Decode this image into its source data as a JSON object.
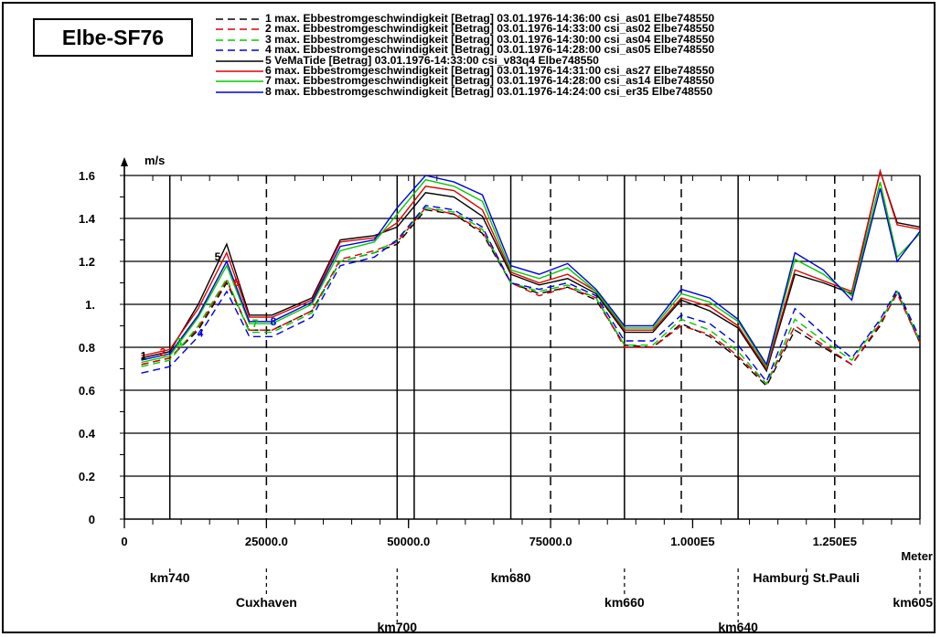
{
  "title": "Elbe-SF76",
  "chart_data": {
    "type": "line",
    "ylabel": "m/s",
    "xlabel": "Meter",
    "xlim": [
      0,
      140000
    ],
    "ylim": [
      0,
      1.6
    ],
    "grid": true,
    "legend_placement": "top",
    "x_ticks": [
      {
        "value": 0,
        "label": "0"
      },
      {
        "value": 25000,
        "label": "25000.0"
      },
      {
        "value": 50000,
        "label": "50000.0"
      },
      {
        "value": 75000,
        "label": "75000.0"
      },
      {
        "value": 100000,
        "label": "1.000E5"
      },
      {
        "value": 125000,
        "label": "1.250E5"
      }
    ],
    "y_ticks": [
      {
        "value": 0,
        "label": "0"
      },
      {
        "value": 0.2,
        "label": "0.2"
      },
      {
        "value": 0.4,
        "label": "0.4"
      },
      {
        "value": 0.6,
        "label": "0.6"
      },
      {
        "value": 0.8,
        "label": "0.8"
      },
      {
        "value": 1.0,
        "label": "1."
      },
      {
        "value": 1.2,
        "label": "1.2"
      },
      {
        "value": 1.4,
        "label": "1.4"
      },
      {
        "value": 1.6,
        "label": "1.6"
      }
    ],
    "km_markers": [
      {
        "value": 8000,
        "label": "km740"
      },
      {
        "value": 25000,
        "label": "Cuxhaven"
      },
      {
        "value": 48000,
        "label": "km700"
      },
      {
        "value": 68000,
        "label": "km680"
      },
      {
        "value": 88000,
        "label": "km660"
      },
      {
        "value": 108000,
        "label": "km640"
      },
      {
        "value": 120000,
        "label": "Hamburg St.Pauli"
      },
      {
        "value": 140000,
        "label": "km605"
      }
    ],
    "solid_verticals": [
      8000,
      48000,
      51000,
      68000,
      88000,
      108000,
      140000
    ],
    "dashed_verticals": [
      25000,
      75000,
      98000,
      125000
    ],
    "x": [
      3000,
      8000,
      13000,
      18000,
      22000,
      26000,
      33000,
      38000,
      44000,
      48000,
      53000,
      58000,
      63000,
      68000,
      73000,
      78000,
      83000,
      88000,
      93000,
      98000,
      103000,
      108000,
      113000,
      118000,
      123000,
      128000,
      133000,
      136000,
      140000
    ],
    "series": [
      {
        "name": "1 max. Ebbestromgeschwindigkeit [Betrag] 03.01.1976-14:36:00 csi_as01 Elbe748550",
        "color": "#000000",
        "dash": true,
        "label": "1",
        "values": [
          0.72,
          0.75,
          0.88,
          1.1,
          0.88,
          0.88,
          0.97,
          1.2,
          1.24,
          1.28,
          1.44,
          1.42,
          1.33,
          1.1,
          1.05,
          1.08,
          1.02,
          0.81,
          0.8,
          0.91,
          0.85,
          0.75,
          0.62,
          0.88,
          0.8,
          0.72,
          0.9,
          1.06,
          0.82
        ]
      },
      {
        "name": "2 max. Ebbestromgeschwindigkeit [Betrag] 03.01.1976-14:33:00 csi_as02 Elbe748550",
        "color": "#e00000",
        "dash": true,
        "label": "2",
        "values": [
          0.72,
          0.75,
          0.89,
          1.11,
          0.88,
          0.88,
          0.97,
          1.21,
          1.25,
          1.29,
          1.45,
          1.42,
          1.34,
          1.1,
          1.04,
          1.08,
          1.03,
          0.8,
          0.8,
          0.9,
          0.86,
          0.76,
          0.63,
          0.9,
          0.81,
          0.72,
          0.91,
          1.05,
          0.82
        ]
      },
      {
        "name": "3 max. Ebbestromgeschwindigkeit [Betrag] 03.01.1976-14:30:00 csi_as04 Elbe748550",
        "color": "#00cc00",
        "dash": true,
        "label": "3",
        "values": [
          0.71,
          0.74,
          0.9,
          1.12,
          0.87,
          0.87,
          0.96,
          1.2,
          1.24,
          1.3,
          1.45,
          1.43,
          1.35,
          1.1,
          1.06,
          1.09,
          1.03,
          0.81,
          0.81,
          0.93,
          0.88,
          0.78,
          0.63,
          0.93,
          0.83,
          0.74,
          0.92,
          1.06,
          0.83
        ]
      },
      {
        "name": "4 max. Ebbestromgeschwindigkeit [Betrag] 03.01.1976-14:28:00 csi_as05 Elbe748550",
        "color": "#0000e0",
        "dash": true,
        "label": "4",
        "values": [
          0.68,
          0.71,
          0.85,
          1.06,
          0.85,
          0.85,
          0.94,
          1.18,
          1.22,
          1.3,
          1.46,
          1.44,
          1.36,
          1.1,
          1.07,
          1.1,
          1.04,
          0.83,
          0.83,
          0.95,
          0.91,
          0.81,
          0.64,
          0.98,
          0.86,
          0.75,
          0.93,
          1.07,
          0.84
        ]
      },
      {
        "name": "5 VeMaTide [Betrag] 03.01.1976-14:33:00 csi_v83q4 Elbe748550",
        "color": "#000000",
        "dash": false,
        "label": "5",
        "values": [
          0.75,
          0.78,
          1.0,
          1.28,
          0.95,
          0.95,
          1.03,
          1.3,
          1.32,
          1.36,
          1.52,
          1.5,
          1.41,
          1.14,
          1.09,
          1.12,
          1.05,
          0.87,
          0.87,
          1.02,
          0.97,
          0.89,
          0.69,
          1.14,
          1.1,
          1.05,
          1.62,
          1.38,
          1.36
        ]
      },
      {
        "name": "6 max. Ebbestromgeschwindigkeit [Betrag] 03.01.1976-14:31:00 csi_as27 Elbe748550",
        "color": "#e00000",
        "dash": false,
        "label": "6",
        "values": [
          0.76,
          0.79,
          0.98,
          1.24,
          0.94,
          0.94,
          1.02,
          1.29,
          1.31,
          1.38,
          1.55,
          1.53,
          1.44,
          1.15,
          1.1,
          1.14,
          1.06,
          0.88,
          0.88,
          1.03,
          0.99,
          0.9,
          0.7,
          1.16,
          1.11,
          1.06,
          1.62,
          1.37,
          1.35
        ]
      },
      {
        "name": "7 max. Ebbestromgeschwindigkeit [Betrag] 03.01.1976-14:28:00 csi_as14 Elbe748550",
        "color": "#00cc00",
        "dash": false,
        "label": "7",
        "values": [
          0.73,
          0.76,
          0.94,
          1.18,
          0.91,
          0.91,
          1.0,
          1.25,
          1.29,
          1.42,
          1.58,
          1.55,
          1.48,
          1.16,
          1.12,
          1.17,
          1.06,
          0.89,
          0.89,
          1.05,
          1.01,
          0.92,
          0.71,
          1.21,
          1.14,
          1.04,
          1.57,
          1.22,
          1.33
        ]
      },
      {
        "name": "8 max. Ebbestromgeschwindigkeit [Betrag] 03.01.1976-14:24:00 csi_er35 Elbe748550",
        "color": "#0000e0",
        "dash": false,
        "label": "8",
        "values": [
          0.74,
          0.77,
          0.95,
          1.2,
          0.92,
          0.92,
          1.01,
          1.27,
          1.3,
          1.45,
          1.6,
          1.57,
          1.51,
          1.18,
          1.14,
          1.19,
          1.07,
          0.9,
          0.9,
          1.07,
          1.03,
          0.93,
          0.72,
          1.24,
          1.16,
          1.02,
          1.54,
          1.2,
          1.34
        ]
      }
    ]
  }
}
